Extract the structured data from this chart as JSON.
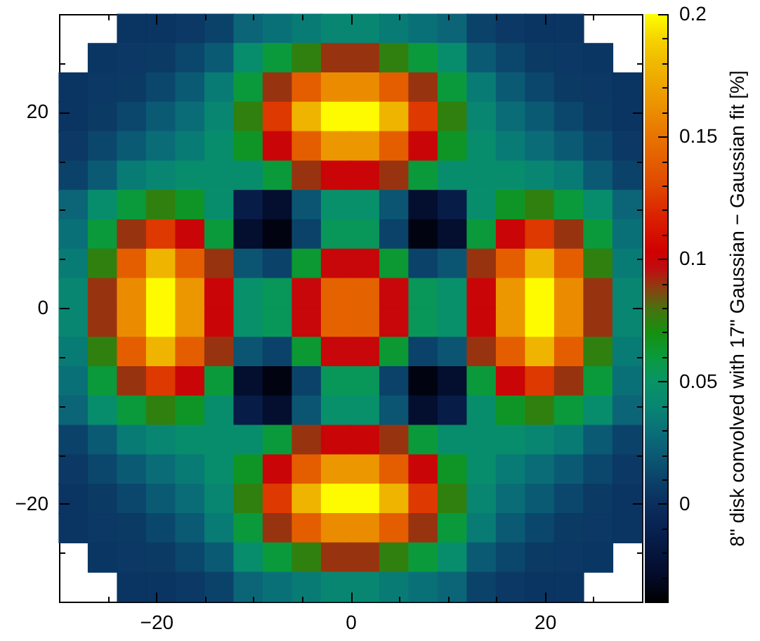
{
  "chart_data": {
    "type": "heatmap",
    "x": [
      -28.5,
      -25.5,
      -22.5,
      -19.5,
      -16.5,
      -13.5,
      -10.5,
      -7.5,
      -4.5,
      -1.5,
      1.5,
      4.5,
      7.5,
      10.5,
      13.5,
      16.5,
      19.5,
      22.5,
      25.5,
      28.5
    ],
    "y": [
      28.5,
      25.5,
      22.5,
      19.5,
      16.5,
      13.5,
      10.5,
      7.5,
      4.5,
      1.5,
      -1.5,
      -4.5,
      -7.5,
      -10.5,
      -13.5,
      -16.5,
      -19.5,
      -22.5,
      -25.5,
      -28.5
    ],
    "xlim": [
      -30,
      30
    ],
    "ylim": [
      -30,
      30
    ],
    "xticks": [
      {
        "value": -25,
        "label": null
      },
      -20,
      {
        "value": -15,
        "label": null
      },
      {
        "value": -10,
        "label": null
      },
      {
        "value": -5,
        "label": null
      },
      0,
      {
        "value": 5,
        "label": null
      },
      {
        "value": 10,
        "label": null
      },
      {
        "value": 15,
        "label": null
      },
      20,
      {
        "value": 25,
        "label": null
      }
    ],
    "yticks": [
      {
        "value": -25,
        "label": null
      },
      -20,
      {
        "value": -15,
        "label": null
      },
      {
        "value": -10,
        "label": null
      },
      {
        "value": -5,
        "label": null
      },
      0,
      {
        "value": 5,
        "label": null
      },
      {
        "value": 10,
        "label": null
      },
      {
        "value": 15,
        "label": null
      },
      20,
      {
        "value": 25,
        "label": null
      }
    ],
    "clim": [
      -0.04,
      0.2
    ],
    "cticks": [
      {
        "value": -0.03,
        "label": null
      },
      {
        "value": -0.02,
        "label": null
      },
      {
        "value": -0.01,
        "label": null
      },
      0,
      {
        "value": 0.01,
        "label": null
      },
      {
        "value": 0.02,
        "label": null
      },
      {
        "value": 0.03,
        "label": null
      },
      {
        "value": 0.04,
        "label": null
      },
      0.05,
      {
        "value": 0.06,
        "label": null
      },
      {
        "value": 0.07,
        "label": null
      },
      {
        "value": 0.08,
        "label": null
      },
      {
        "value": 0.09,
        "label": null
      },
      0.1,
      {
        "value": 0.11,
        "label": null
      },
      {
        "value": 0.12,
        "label": null
      },
      {
        "value": 0.13,
        "label": null
      },
      {
        "value": 0.14,
        "label": null
      },
      0.15,
      {
        "value": 0.16,
        "label": null
      },
      {
        "value": 0.17,
        "label": null
      },
      {
        "value": 0.18,
        "label": null
      },
      {
        "value": 0.19,
        "label": null
      },
      0.2
    ],
    "clabel": "8\" disk convolved with 17\" Gaussian − Gaussian fit [%]",
    "cells": [
      [
        null,
        null,
        0.003,
        0.003,
        0.005,
        0.01,
        0.025,
        0.03,
        0.035,
        0.04,
        0.04,
        0.035,
        0.03,
        0.025,
        0.01,
        0.005,
        0.003,
        0.003,
        null,
        null
      ],
      [
        null,
        0.004,
        0.005,
        0.006,
        0.012,
        0.02,
        0.045,
        0.06,
        0.075,
        0.09,
        0.09,
        0.075,
        0.06,
        0.045,
        0.02,
        0.012,
        0.006,
        0.005,
        0.004,
        null
      ],
      [
        0.003,
        0.005,
        0.006,
        0.012,
        0.02,
        0.035,
        0.06,
        0.09,
        0.14,
        0.16,
        0.16,
        0.14,
        0.09,
        0.06,
        0.035,
        0.02,
        0.012,
        0.006,
        0.005,
        0.003
      ],
      [
        0.003,
        0.006,
        0.012,
        0.02,
        0.028,
        0.04,
        0.075,
        0.125,
        0.178,
        0.199,
        0.199,
        0.178,
        0.125,
        0.075,
        0.04,
        0.028,
        0.02,
        0.012,
        0.006,
        0.003
      ],
      [
        0.005,
        0.012,
        0.02,
        0.028,
        0.035,
        0.045,
        0.065,
        0.1,
        0.14,
        0.165,
        0.165,
        0.14,
        0.1,
        0.065,
        0.045,
        0.035,
        0.028,
        0.02,
        0.012,
        0.005
      ],
      [
        0.01,
        0.02,
        0.035,
        0.04,
        0.045,
        0.045,
        0.045,
        0.06,
        0.09,
        0.1,
        0.1,
        0.09,
        0.06,
        0.045,
        0.045,
        0.045,
        0.04,
        0.035,
        0.02,
        0.01
      ],
      [
        0.025,
        0.045,
        0.06,
        0.075,
        0.065,
        0.045,
        -0.015,
        -0.027,
        0.018,
        0.047,
        0.047,
        0.018,
        -0.027,
        -0.015,
        0.045,
        0.065,
        0.075,
        0.06,
        0.045,
        0.025
      ],
      [
        0.03,
        0.06,
        0.09,
        0.125,
        0.1,
        0.06,
        -0.027,
        -0.036,
        0.01,
        0.053,
        0.053,
        0.01,
        -0.036,
        -0.027,
        0.06,
        0.1,
        0.125,
        0.09,
        0.06,
        0.03
      ],
      [
        0.035,
        0.075,
        0.14,
        0.178,
        0.14,
        0.09,
        0.018,
        0.01,
        0.062,
        0.099,
        0.099,
        0.062,
        0.01,
        0.018,
        0.09,
        0.14,
        0.178,
        0.14,
        0.075,
        0.035
      ],
      [
        0.04,
        0.09,
        0.16,
        0.199,
        0.165,
        0.1,
        0.047,
        0.053,
        0.099,
        0.142,
        0.142,
        0.099,
        0.053,
        0.047,
        0.1,
        0.165,
        0.199,
        0.16,
        0.09,
        0.04
      ],
      [
        0.04,
        0.09,
        0.16,
        0.199,
        0.165,
        0.1,
        0.047,
        0.053,
        0.099,
        0.142,
        0.142,
        0.099,
        0.053,
        0.047,
        0.1,
        0.165,
        0.199,
        0.16,
        0.09,
        0.04
      ],
      [
        0.035,
        0.075,
        0.14,
        0.178,
        0.14,
        0.09,
        0.018,
        0.01,
        0.062,
        0.099,
        0.099,
        0.062,
        0.01,
        0.018,
        0.09,
        0.14,
        0.178,
        0.14,
        0.075,
        0.035
      ],
      [
        0.03,
        0.06,
        0.09,
        0.125,
        0.1,
        0.06,
        -0.027,
        -0.036,
        0.01,
        0.053,
        0.053,
        0.01,
        -0.036,
        -0.027,
        0.06,
        0.1,
        0.125,
        0.09,
        0.06,
        0.03
      ],
      [
        0.025,
        0.045,
        0.06,
        0.075,
        0.065,
        0.045,
        -0.015,
        -0.027,
        0.018,
        0.047,
        0.047,
        0.018,
        -0.027,
        -0.015,
        0.045,
        0.065,
        0.075,
        0.06,
        0.045,
        0.025
      ],
      [
        0.01,
        0.02,
        0.035,
        0.04,
        0.045,
        0.045,
        0.045,
        0.06,
        0.09,
        0.1,
        0.1,
        0.09,
        0.06,
        0.045,
        0.045,
        0.045,
        0.04,
        0.035,
        0.02,
        0.01
      ],
      [
        0.005,
        0.012,
        0.02,
        0.028,
        0.035,
        0.045,
        0.065,
        0.1,
        0.14,
        0.165,
        0.165,
        0.14,
        0.1,
        0.065,
        0.045,
        0.035,
        0.028,
        0.02,
        0.012,
        0.005
      ],
      [
        0.003,
        0.006,
        0.012,
        0.02,
        0.028,
        0.04,
        0.075,
        0.125,
        0.178,
        0.199,
        0.199,
        0.178,
        0.125,
        0.075,
        0.04,
        0.028,
        0.02,
        0.012,
        0.006,
        0.003
      ],
      [
        0.003,
        0.005,
        0.006,
        0.012,
        0.02,
        0.035,
        0.06,
        0.09,
        0.14,
        0.16,
        0.16,
        0.14,
        0.09,
        0.06,
        0.035,
        0.02,
        0.012,
        0.006,
        0.005,
        0.003
      ],
      [
        null,
        0.004,
        0.005,
        0.006,
        0.012,
        0.02,
        0.045,
        0.06,
        0.075,
        0.09,
        0.09,
        0.075,
        0.06,
        0.045,
        0.02,
        0.012,
        0.006,
        0.005,
        0.004,
        null
      ],
      [
        null,
        null,
        0.003,
        0.003,
        0.005,
        0.01,
        0.025,
        0.03,
        0.035,
        0.04,
        0.04,
        0.035,
        0.03,
        0.025,
        0.01,
        0.005,
        0.003,
        0.003,
        null,
        null
      ]
    ]
  }
}
